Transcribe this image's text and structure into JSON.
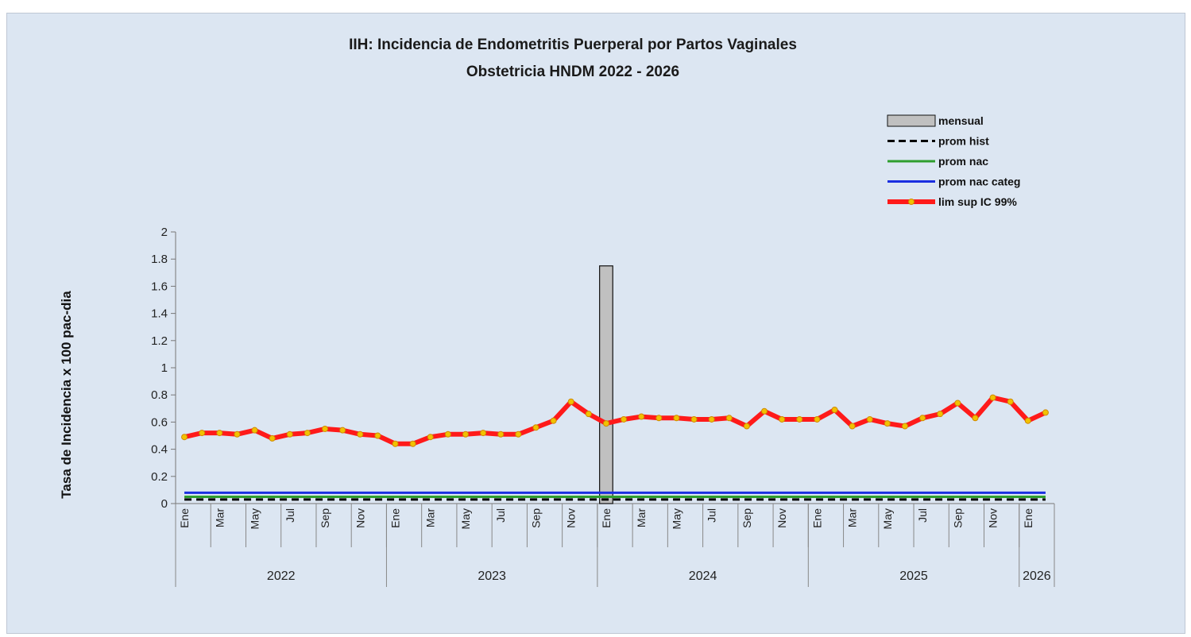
{
  "chart_data": {
    "type": "line",
    "title": "IIH: Incidencia de Endometritis Puerperal por Partos Vaginales",
    "subtitle": "Obstetricia HNDM 2022 - 2026",
    "ylabel": "Tasa de Incidencia x 100 pac-dia",
    "xlabel": "",
    "ylim": [
      0,
      2
    ],
    "yticks": [
      "0",
      "0.2",
      "0.4",
      "0.6",
      "0.8",
      "1",
      "1.2",
      "1.4",
      "1.6",
      "1.8",
      "2"
    ],
    "grid": false,
    "legend_position": "top-right",
    "month_labels": [
      "Ene",
      "Mar",
      "May",
      "Jul",
      "Sep",
      "Nov",
      "Ene",
      "Mar",
      "May",
      "Jul",
      "Sep",
      "Nov",
      "Ene",
      "Mar",
      "May",
      "Jul",
      "Sep",
      "Nov",
      "Ene",
      "Mar",
      "May",
      "Jul",
      "Sep",
      "Nov",
      "Ene"
    ],
    "years": [
      {
        "label": "2022",
        "start": 0,
        "months": 12
      },
      {
        "label": "2023",
        "start": 12,
        "months": 12
      },
      {
        "label": "2024",
        "start": 24,
        "months": 12
      },
      {
        "label": "2025",
        "start": 36,
        "months": 12
      },
      {
        "label": "2026",
        "start": 48,
        "months": 2
      }
    ],
    "legend": [
      "mensual",
      "prom hist",
      "prom nac",
      "prom nac categ",
      "lim sup IC 99%"
    ],
    "colors": {
      "mensual": "#c0c0c0",
      "prom_hist": "#000000",
      "prom_nac": "#2e9e2e",
      "prom_nac_categ": "#1a2fe0",
      "lim_sup": "#ff1a1a",
      "marker": "#f2c200"
    },
    "series": [
      {
        "name": "mensual",
        "type": "bar",
        "values": [
          0,
          0,
          0,
          0,
          0,
          0,
          0,
          0,
          0,
          0,
          0,
          0,
          0,
          0,
          0,
          0,
          0,
          0,
          0,
          0,
          0,
          0,
          0,
          0,
          1.75,
          0,
          0,
          0,
          0,
          0,
          0,
          0,
          0,
          0,
          0,
          0,
          0,
          0,
          0,
          0,
          0,
          0,
          0,
          0,
          0,
          0,
          0,
          0,
          0,
          0
        ]
      },
      {
        "name": "prom hist",
        "type": "line",
        "values": [
          0.03,
          0.03,
          0.03,
          0.03,
          0.03,
          0.03,
          0.03,
          0.03,
          0.03,
          0.03,
          0.03,
          0.03,
          0.03,
          0.03,
          0.03,
          0.03,
          0.03,
          0.03,
          0.03,
          0.03,
          0.03,
          0.03,
          0.03,
          0.03,
          0.03,
          0.03,
          0.03,
          0.03,
          0.03,
          0.03,
          0.03,
          0.03,
          0.03,
          0.03,
          0.03,
          0.03,
          0.03,
          0.03,
          0.03,
          0.03,
          0.03,
          0.03,
          0.03,
          0.03,
          0.03,
          0.03,
          0.03,
          0.03,
          0.03,
          0.03
        ]
      },
      {
        "name": "prom nac",
        "type": "line",
        "values": [
          0.05,
          0.05,
          0.05,
          0.05,
          0.05,
          0.05,
          0.05,
          0.05,
          0.05,
          0.05,
          0.05,
          0.05,
          0.05,
          0.05,
          0.05,
          0.05,
          0.05,
          0.05,
          0.05,
          0.05,
          0.05,
          0.05,
          0.05,
          0.05,
          0.05,
          0.05,
          0.05,
          0.05,
          0.05,
          0.05,
          0.05,
          0.05,
          0.05,
          0.05,
          0.05,
          0.05,
          0.05,
          0.05,
          0.05,
          0.05,
          0.05,
          0.05,
          0.05,
          0.05,
          0.05,
          0.05,
          0.05,
          0.05,
          0.05,
          0.05
        ]
      },
      {
        "name": "prom nac categ",
        "type": "line",
        "values": [
          0.08,
          0.08,
          0.08,
          0.08,
          0.08,
          0.08,
          0.08,
          0.08,
          0.08,
          0.08,
          0.08,
          0.08,
          0.08,
          0.08,
          0.08,
          0.08,
          0.08,
          0.08,
          0.08,
          0.08,
          0.08,
          0.08,
          0.08,
          0.08,
          0.08,
          0.08,
          0.08,
          0.08,
          0.08,
          0.08,
          0.08,
          0.08,
          0.08,
          0.08,
          0.08,
          0.08,
          0.08,
          0.08,
          0.08,
          0.08,
          0.08,
          0.08,
          0.08,
          0.08,
          0.08,
          0.08,
          0.08,
          0.08,
          0.08,
          0.08
        ]
      },
      {
        "name": "lim sup IC 99%",
        "type": "line",
        "values": [
          0.49,
          0.52,
          0.52,
          0.51,
          0.54,
          0.48,
          0.51,
          0.52,
          0.55,
          0.54,
          0.51,
          0.5,
          0.44,
          0.44,
          0.49,
          0.51,
          0.51,
          0.52,
          0.51,
          0.51,
          0.56,
          0.61,
          0.75,
          0.66,
          0.59,
          0.62,
          0.64,
          0.63,
          0.63,
          0.62,
          0.62,
          0.63,
          0.57,
          0.68,
          0.62,
          0.62,
          0.62,
          0.69,
          0.57,
          0.62,
          0.59,
          0.57,
          0.63,
          0.66,
          0.74,
          0.63,
          0.78,
          0.75,
          0.61,
          0.67
        ]
      }
    ]
  }
}
